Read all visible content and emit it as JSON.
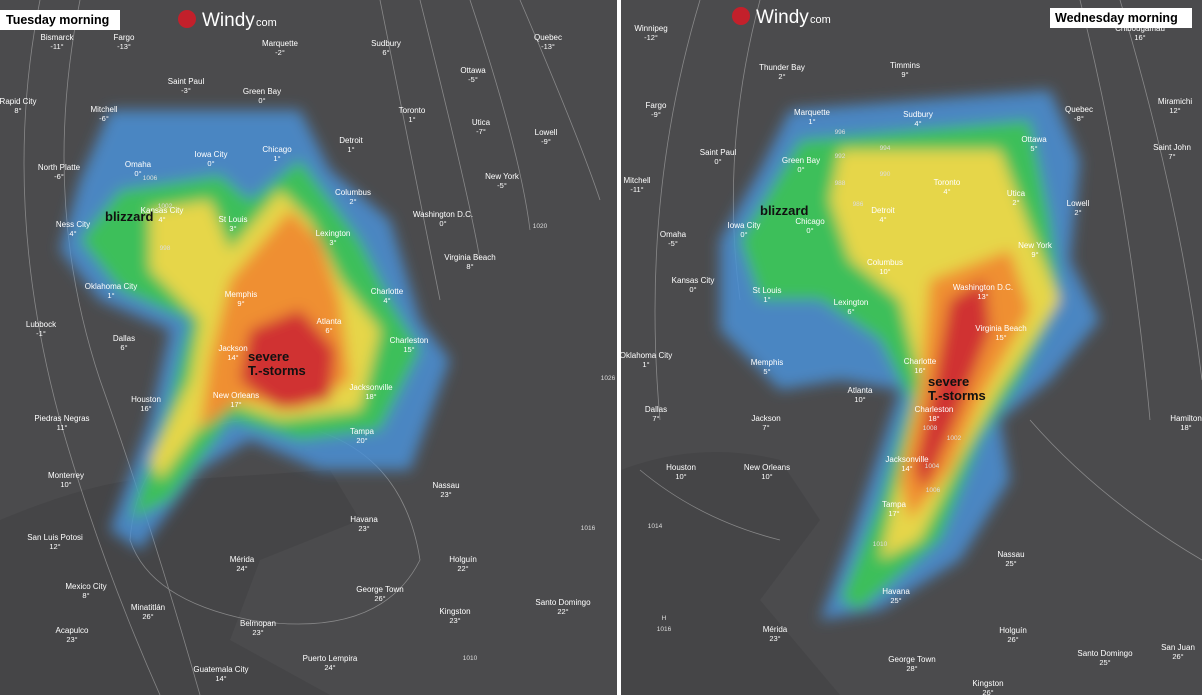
{
  "panels": [
    {
      "title": "Tuesday morning",
      "logo": "Windy",
      "logo_suffix": "com",
      "annotations": [
        "blizzard",
        "severe\nT.-storms"
      ],
      "pressures": [
        "1020",
        "1026",
        "1016",
        "1010",
        "1006",
        "1002",
        "998"
      ],
      "cities": [
        {
          "name": "Bismarck",
          "temp": "-11°"
        },
        {
          "name": "Fargo",
          "temp": "-13°"
        },
        {
          "name": "Marquette",
          "temp": "-2°"
        },
        {
          "name": "Sudbury",
          "temp": "6°"
        },
        {
          "name": "Quebec",
          "temp": "-13°"
        },
        {
          "name": "Saint Paul",
          "temp": "-3°"
        },
        {
          "name": "Green Bay",
          "temp": "0°"
        },
        {
          "name": "Ottawa",
          "temp": "-5°"
        },
        {
          "name": "Rapid City",
          "temp": "8°"
        },
        {
          "name": "Mitchell",
          "temp": "-6°"
        },
        {
          "name": "Toronto",
          "temp": "1°"
        },
        {
          "name": "Utica",
          "temp": "-7°"
        },
        {
          "name": "Lowell",
          "temp": "-9°"
        },
        {
          "name": "Omaha",
          "temp": "0°"
        },
        {
          "name": "Iowa City",
          "temp": "0°"
        },
        {
          "name": "Chicago",
          "temp": "1°"
        },
        {
          "name": "Detroit",
          "temp": "1°"
        },
        {
          "name": "North Platte",
          "temp": "-6°"
        },
        {
          "name": "Columbus",
          "temp": "2°"
        },
        {
          "name": "New York",
          "temp": "-5°"
        },
        {
          "name": "Kansas City",
          "temp": "4°"
        },
        {
          "name": "Washington D.C.",
          "temp": "0°"
        },
        {
          "name": "St Louis",
          "temp": "3°"
        },
        {
          "name": "Ness City",
          "temp": "4°"
        },
        {
          "name": "Lexington",
          "temp": "3°"
        },
        {
          "name": "Virginia Beach",
          "temp": "8°"
        },
        {
          "name": "Oklahoma City",
          "temp": "1°"
        },
        {
          "name": "Memphis",
          "temp": "9°"
        },
        {
          "name": "Charlotte",
          "temp": "4°"
        },
        {
          "name": "Lubbock",
          "temp": "-1°"
        },
        {
          "name": "Atlanta",
          "temp": "6°"
        },
        {
          "name": "Dallas",
          "temp": "6°"
        },
        {
          "name": "Charleston",
          "temp": "15°"
        },
        {
          "name": "Jackson",
          "temp": "14°"
        },
        {
          "name": "Houston",
          "temp": "16°"
        },
        {
          "name": "New Orleans",
          "temp": "17°"
        },
        {
          "name": "Jacksonville",
          "temp": "18°"
        },
        {
          "name": "Piedras Negras",
          "temp": "11°"
        },
        {
          "name": "Tampa",
          "temp": "20°"
        },
        {
          "name": "Monterrey",
          "temp": "10°"
        },
        {
          "name": "Nassau",
          "temp": "23°"
        },
        {
          "name": "San Luis Potosi",
          "temp": "12°"
        },
        {
          "name": "Havana",
          "temp": "23°"
        },
        {
          "name": "Mexico City",
          "temp": "8°"
        },
        {
          "name": "Mérida",
          "temp": "24°"
        },
        {
          "name": "Holguín",
          "temp": "22°"
        },
        {
          "name": "George Town",
          "temp": "26°"
        },
        {
          "name": "Santo Domingo",
          "temp": "22°"
        },
        {
          "name": "Acapulco",
          "temp": "23°"
        },
        {
          "name": "Minatitlán",
          "temp": "26°"
        },
        {
          "name": "Belmopan",
          "temp": "23°"
        },
        {
          "name": "Kingston",
          "temp": "23°"
        },
        {
          "name": "Puerto Lempira",
          "temp": "24°"
        },
        {
          "name": "Guatemala City",
          "temp": "14°"
        }
      ]
    },
    {
      "title": "Wednesday morning",
      "logo": "Windy",
      "logo_suffix": "com",
      "annotations": [
        "blizzard",
        "severe\nT.-storms"
      ],
      "pressures": [
        "H",
        "1016",
        "1014",
        "1010",
        "1006",
        "1004",
        "1002",
        "1008",
        "996",
        "992",
        "988",
        "986",
        "990",
        "994"
      ],
      "cities": [
        {
          "name": "Winnipeg",
          "temp": "-12°"
        },
        {
          "name": "Thunder Bay",
          "temp": "2°"
        },
        {
          "name": "Timmins",
          "temp": "9°"
        },
        {
          "name": "Chibougamau",
          "temp": "16°"
        },
        {
          "name": "Fargo",
          "temp": "-9°"
        },
        {
          "name": "Marquette",
          "temp": "1°"
        },
        {
          "name": "Sudbury",
          "temp": "4°"
        },
        {
          "name": "Quebec",
          "temp": "-8°"
        },
        {
          "name": "Miramichi",
          "temp": "12°"
        },
        {
          "name": "Saint Paul",
          "temp": "0°"
        },
        {
          "name": "Green Bay",
          "temp": "0°"
        },
        {
          "name": "Ottawa",
          "temp": "5°"
        },
        {
          "name": "Saint John",
          "temp": "7°"
        },
        {
          "name": "Mitchell",
          "temp": "-11°"
        },
        {
          "name": "Toronto",
          "temp": "4°"
        },
        {
          "name": "Utica",
          "temp": "2°"
        },
        {
          "name": "Lowell",
          "temp": "2°"
        },
        {
          "name": "Detroit",
          "temp": "4°"
        },
        {
          "name": "Iowa City",
          "temp": "0°"
        },
        {
          "name": "Chicago",
          "temp": "0°"
        },
        {
          "name": "Omaha",
          "temp": "-5°"
        },
        {
          "name": "New York",
          "temp": "9°"
        },
        {
          "name": "Columbus",
          "temp": "10°"
        },
        {
          "name": "Kansas City",
          "temp": "0°"
        },
        {
          "name": "St Louis",
          "temp": "1°"
        },
        {
          "name": "Washington D.C.",
          "temp": "13°"
        },
        {
          "name": "Lexington",
          "temp": "6°"
        },
        {
          "name": "Virginia Beach",
          "temp": "15°"
        },
        {
          "name": "Oklahoma City",
          "temp": "1°"
        },
        {
          "name": "Memphis",
          "temp": "5°"
        },
        {
          "name": "Charlotte",
          "temp": "16°"
        },
        {
          "name": "Atlanta",
          "temp": "10°"
        },
        {
          "name": "Dallas",
          "temp": "7°"
        },
        {
          "name": "Charleston",
          "temp": "18°"
        },
        {
          "name": "Jackson",
          "temp": "7°"
        },
        {
          "name": "Hamilton",
          "temp": "18°"
        },
        {
          "name": "Houston",
          "temp": "10°"
        },
        {
          "name": "New Orleans",
          "temp": "10°"
        },
        {
          "name": "Jacksonville",
          "temp": "14°"
        },
        {
          "name": "Tampa",
          "temp": "17°"
        },
        {
          "name": "Nassau",
          "temp": "25°"
        },
        {
          "name": "Havana",
          "temp": "25°"
        },
        {
          "name": "Mérida",
          "temp": "23°"
        },
        {
          "name": "Holguín",
          "temp": "26°"
        },
        {
          "name": "George Town",
          "temp": "28°"
        },
        {
          "name": "San Juan",
          "temp": "26°"
        },
        {
          "name": "Santo Domingo",
          "temp": "25°"
        },
        {
          "name": "Kingston",
          "temp": "26°"
        }
      ]
    }
  ]
}
